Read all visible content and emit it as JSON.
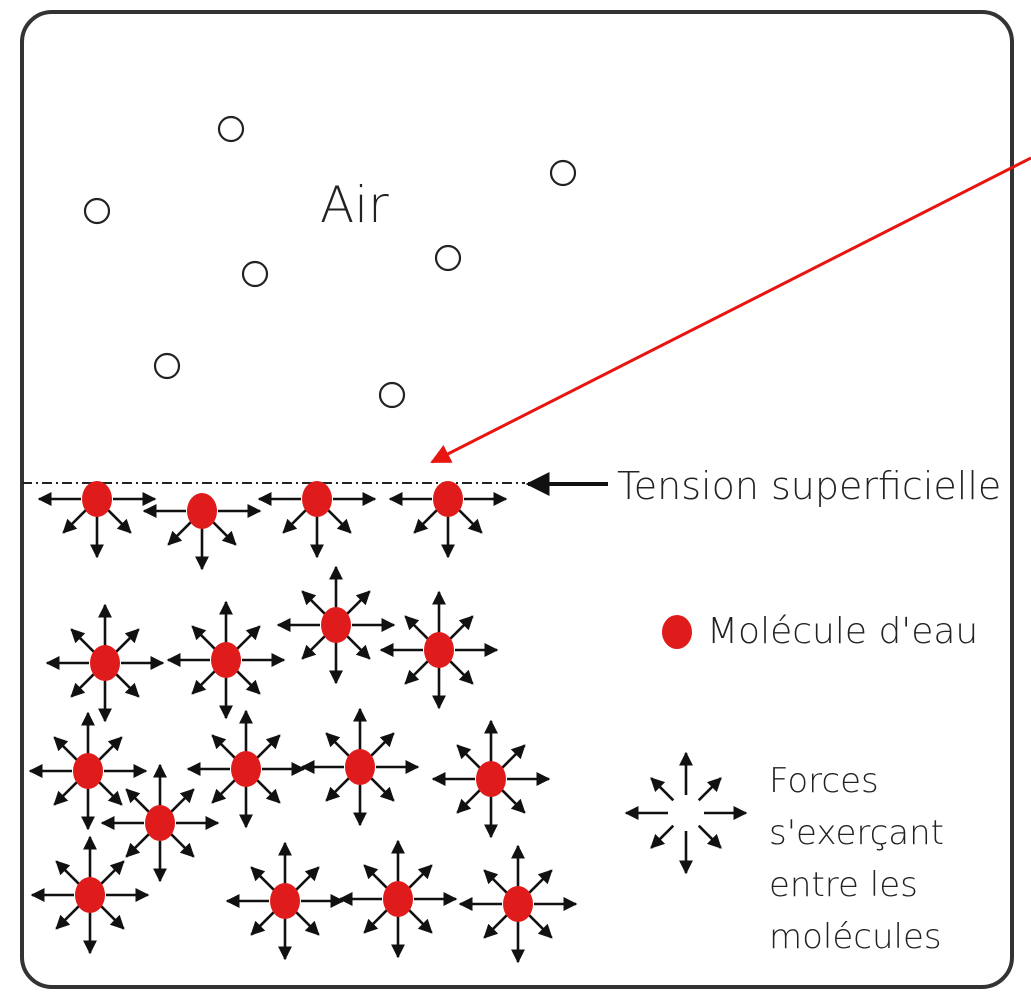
{
  "labels": {
    "air": "Air",
    "surface_tension": "Tension superficielle",
    "molecule_legend": "Molécule d'eau",
    "forces_legend": [
      "Forces",
      "s'exerçant",
      "entre les",
      "molécules"
    ]
  },
  "colors": {
    "molecule": "#e01b1b",
    "pointer_arrow": "#e8140f",
    "frame": "#333333",
    "arrows": "#111111"
  },
  "icons": {
    "air_molecule": "hollow-circle-icon",
    "water_molecule": "red-dot-icon",
    "force_star": "arrow-star-icon"
  }
}
